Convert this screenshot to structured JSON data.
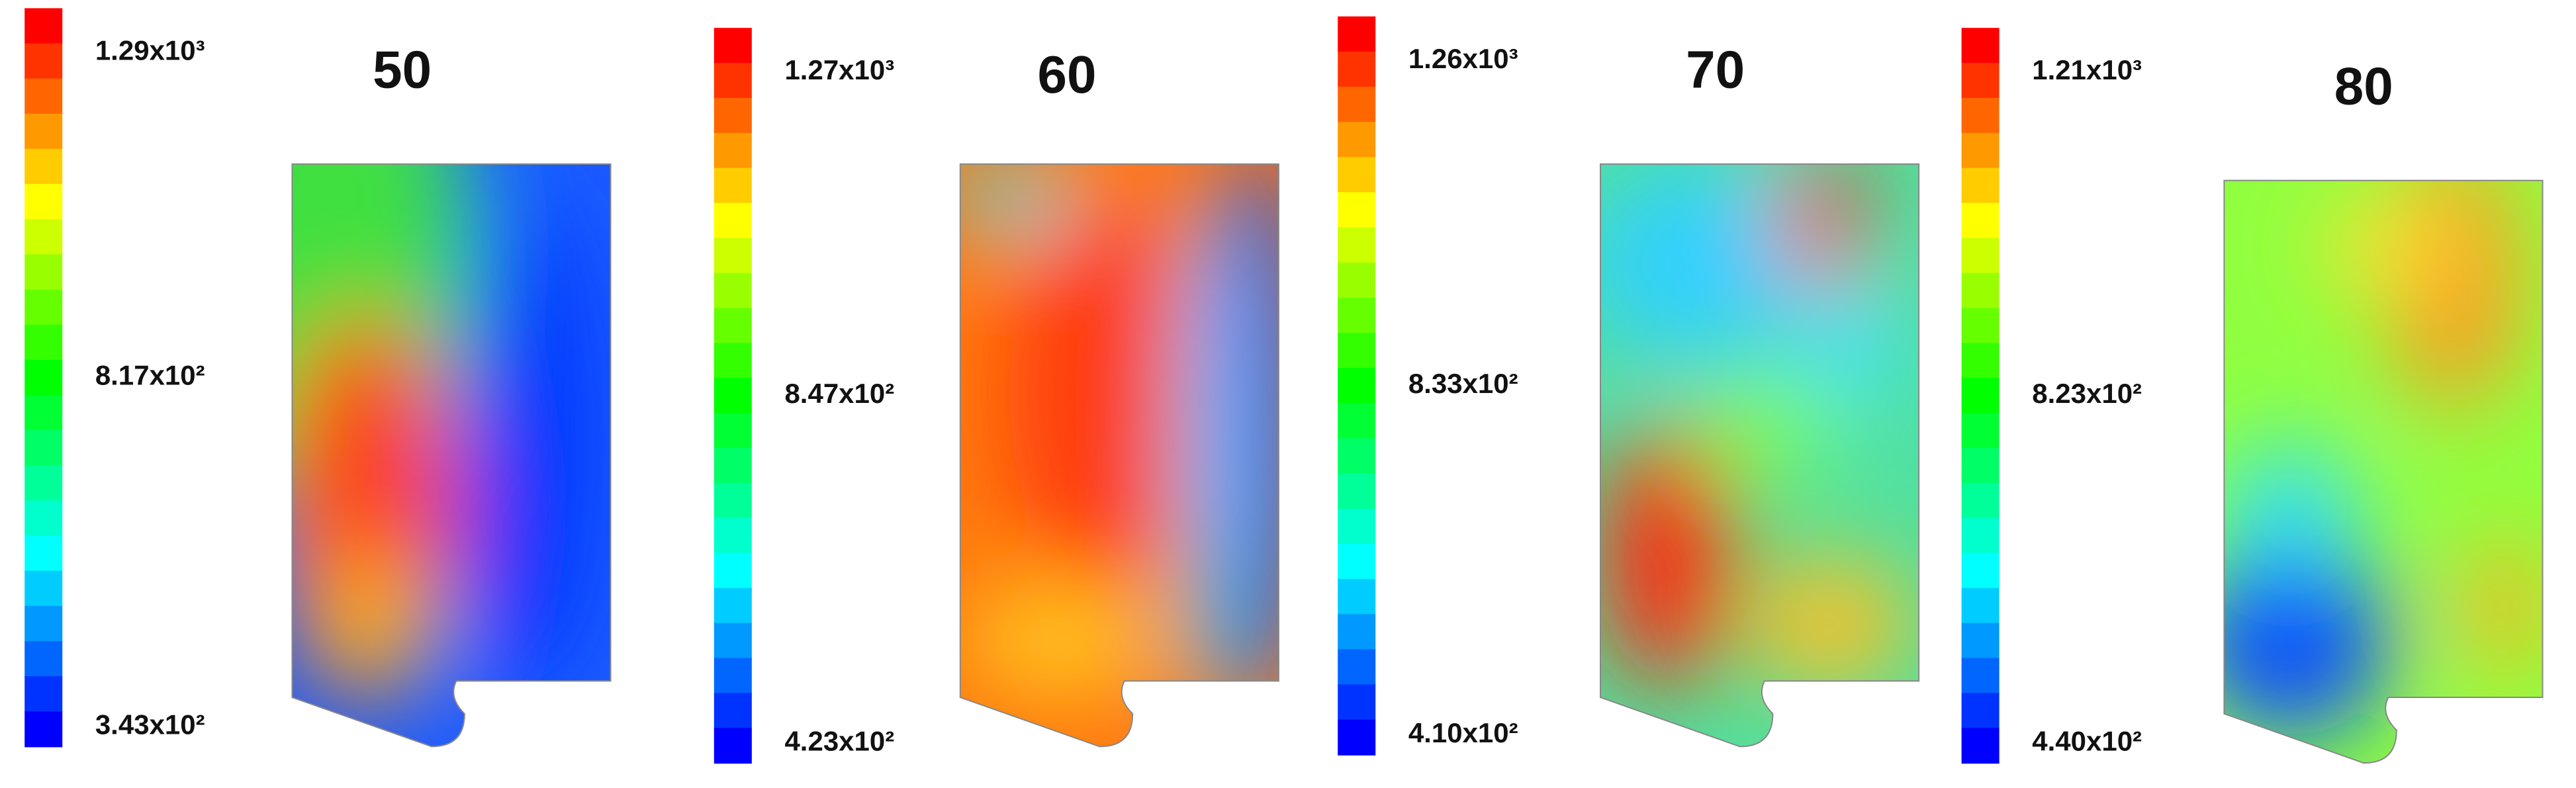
{
  "panels": [
    {
      "title": "50",
      "max_label": "1.29x10³",
      "mid_label": "8.17x10²",
      "min_label": "3.43x10²"
    },
    {
      "title": "60",
      "max_label": "1.27x10³",
      "mid_label": "8.47x10²",
      "min_label": "4.23x10²"
    },
    {
      "title": "70",
      "max_label": "1.26x10³",
      "mid_label": "8.33x10²",
      "min_label": "4.10x10²"
    },
    {
      "title": "80",
      "max_label": "1.21x10³",
      "mid_label": "8.23x10²",
      "min_label": "4.40x10²"
    }
  ]
}
